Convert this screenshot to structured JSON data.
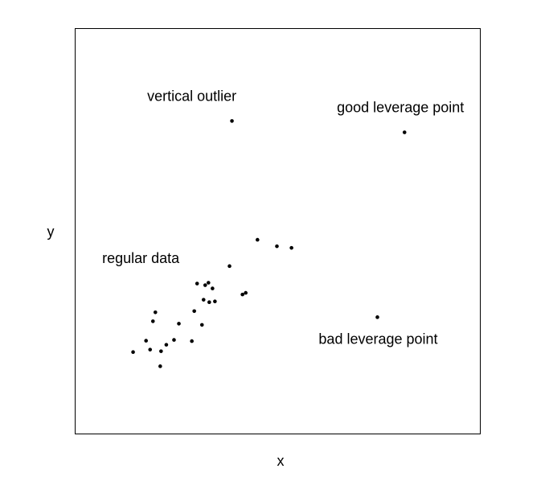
{
  "chart_data": {
    "type": "scatter",
    "xlabel": "x",
    "ylabel": "y",
    "axes_ticks": false,
    "grid": false,
    "xlim": [
      0,
      100
    ],
    "ylim": [
      0,
      100
    ],
    "point_color": "#000000",
    "points": [
      {
        "x": 14.3,
        "y": 20.2
      },
      {
        "x": 17.5,
        "y": 23.0
      },
      {
        "x": 18.5,
        "y": 20.8
      },
      {
        "x": 19.2,
        "y": 27.8
      },
      {
        "x": 19.8,
        "y": 30.0
      },
      {
        "x": 21.0,
        "y": 16.7
      },
      {
        "x": 21.2,
        "y": 20.4
      },
      {
        "x": 22.5,
        "y": 22.0
      },
      {
        "x": 24.4,
        "y": 23.2
      },
      {
        "x": 25.6,
        "y": 27.2
      },
      {
        "x": 28.8,
        "y": 22.9
      },
      {
        "x": 29.4,
        "y": 30.3
      },
      {
        "x": 30.1,
        "y": 37.1
      },
      {
        "x": 31.3,
        "y": 26.9
      },
      {
        "x": 31.7,
        "y": 33.1
      },
      {
        "x": 32.1,
        "y": 36.7
      },
      {
        "x": 32.9,
        "y": 37.3
      },
      {
        "x": 33.1,
        "y": 32.5
      },
      {
        "x": 33.9,
        "y": 35.9
      },
      {
        "x": 34.5,
        "y": 32.7
      },
      {
        "x": 38.1,
        "y": 41.4
      },
      {
        "x": 41.3,
        "y": 34.4
      },
      {
        "x": 42.1,
        "y": 34.8
      },
      {
        "x": 45.0,
        "y": 47.9
      },
      {
        "x": 49.8,
        "y": 46.3
      },
      {
        "x": 53.4,
        "y": 45.9
      },
      {
        "x": 38.7,
        "y": 77.2
      },
      {
        "x": 81.3,
        "y": 74.4
      },
      {
        "x": 74.6,
        "y": 28.8
      }
    ],
    "annotations": [
      {
        "id": "regular",
        "text": "regular data",
        "x": 16.2,
        "y": 43.4
      },
      {
        "id": "vertical",
        "text": "vertical outlier",
        "x": 28.8,
        "y": 83.3
      },
      {
        "id": "good",
        "text": "good leverage point",
        "x": 80.3,
        "y": 80.6
      },
      {
        "id": "bad",
        "text": "bad leverage point",
        "x": 74.8,
        "y": 23.4
      }
    ]
  }
}
